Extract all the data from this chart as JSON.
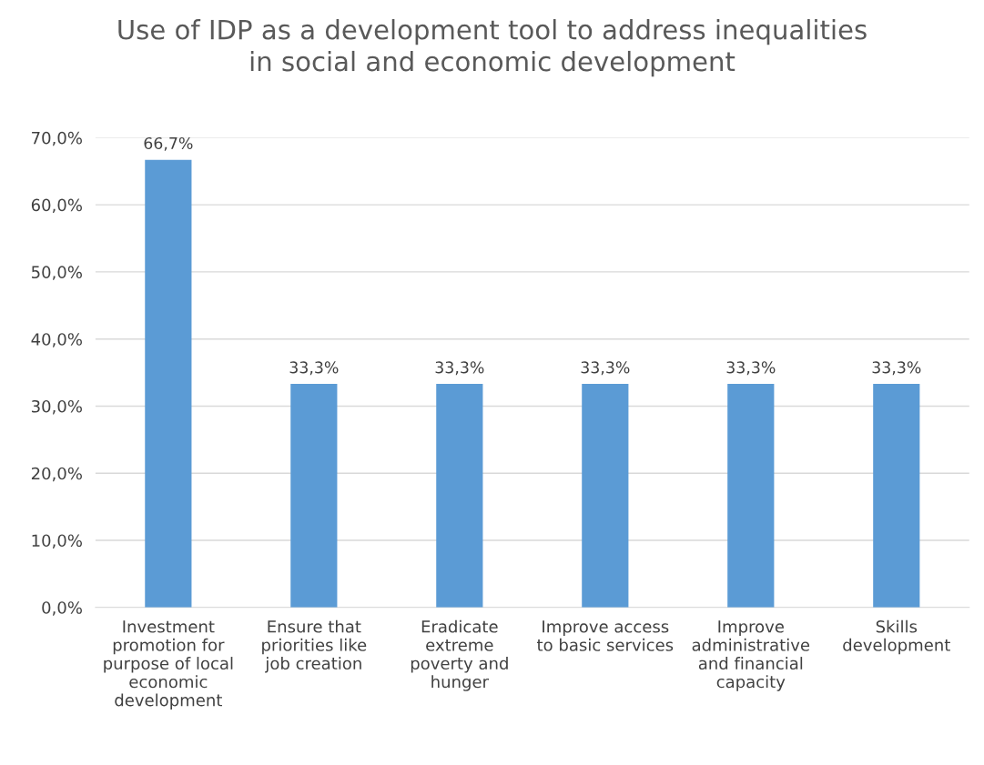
{
  "chart_data": {
    "type": "bar",
    "title": "Use of IDP as a development tool to address inequalities\nin social and economic development",
    "categories": [
      "Investment\npromotion for\npurpose of local\neconomic\ndevelopment",
      "Ensure that\npriorities like\njob creation",
      "Eradicate\nextreme\npoverty and\nhunger",
      "Improve access\nto basic services",
      "Improve\nadministrative\nand financial\ncapacity",
      "Skills\ndevelopment"
    ],
    "values": [
      66.7,
      33.3,
      33.3,
      33.3,
      33.3,
      33.3
    ],
    "value_labels": [
      "66,7%",
      "33,3%",
      "33,3%",
      "33,3%",
      "33,3%",
      "33,3%"
    ],
    "color": "#5b9bd5",
    "ylim": [
      0,
      70
    ],
    "yticks": [
      {
        "value": 0,
        "label": "0,0%"
      },
      {
        "value": 10,
        "label": "10,0%"
      },
      {
        "value": 20,
        "label": "20,0%"
      },
      {
        "value": 30,
        "label": "30,0%"
      },
      {
        "value": 40,
        "label": "40,0%"
      },
      {
        "value": 50,
        "label": "50,0%"
      },
      {
        "value": 60,
        "label": "60,0%"
      },
      {
        "value": 70,
        "label": "70,0%"
      }
    ],
    "grid": "y"
  }
}
